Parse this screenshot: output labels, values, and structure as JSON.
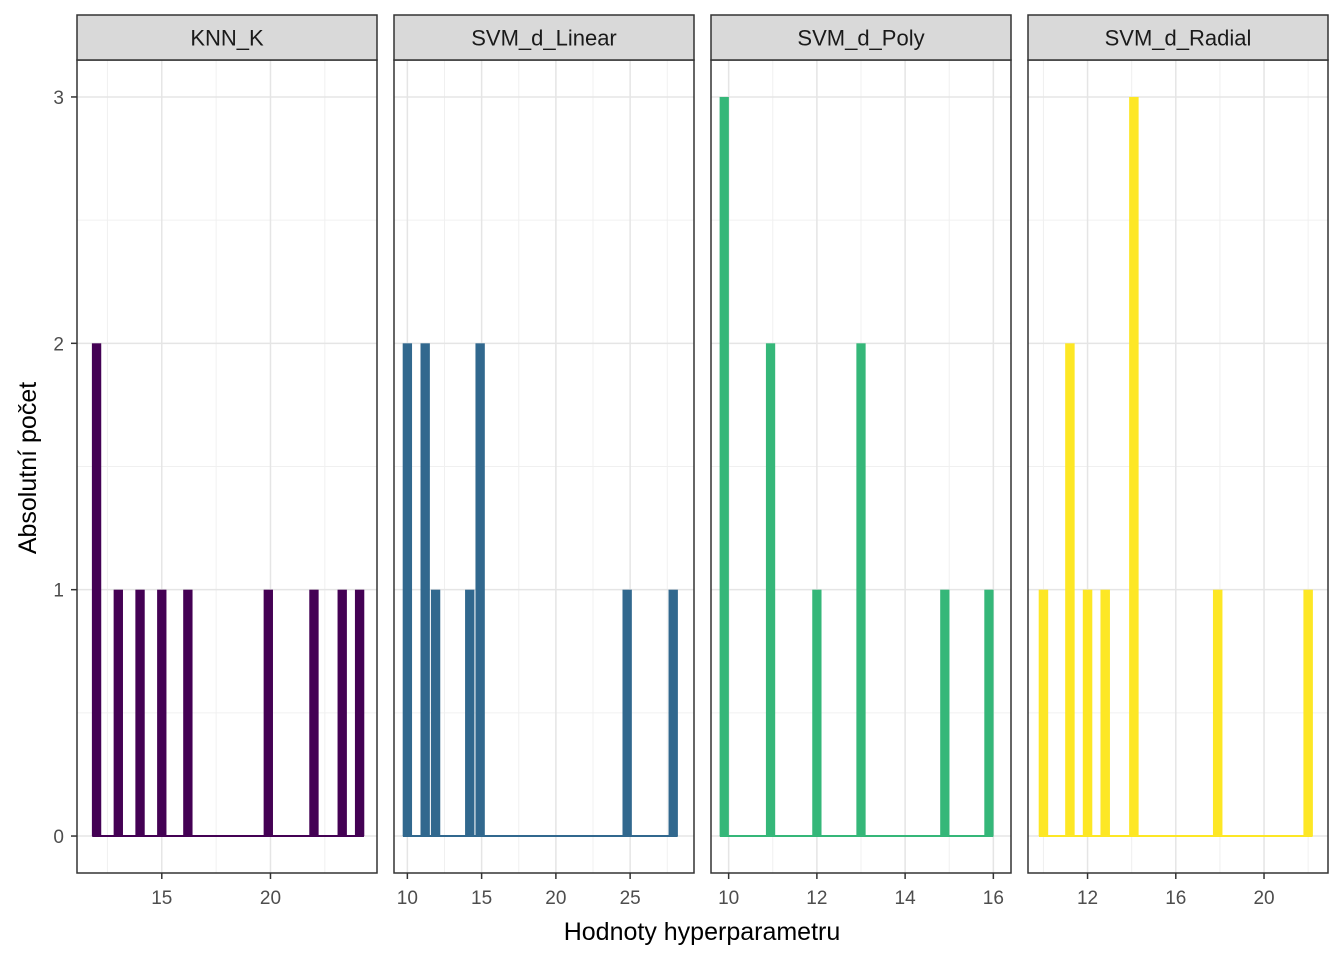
{
  "chart_data": {
    "type": "bar",
    "xlabel": "Hodnoty hyperparametru",
    "ylabel": "Absolutní počet",
    "ylim": [
      -0.15,
      3.15
    ],
    "y_ticks": [
      0,
      1,
      2,
      3
    ],
    "grid": true,
    "legend": "none",
    "facets": [
      {
        "name": "KNN_K",
        "color": "#440154",
        "xlim": [
          11.1,
          24.9
        ],
        "x_ticks": [
          15,
          20
        ],
        "bar_width": 0.43,
        "bars": [
          {
            "x": 12,
            "y": 2
          },
          {
            "x": 13,
            "y": 1
          },
          {
            "x": 14,
            "y": 1
          },
          {
            "x": 15,
            "y": 1
          },
          {
            "x": 16.2,
            "y": 1
          },
          {
            "x": 19.9,
            "y": 1
          },
          {
            "x": 22,
            "y": 1
          },
          {
            "x": 23.3,
            "y": 1
          },
          {
            "x": 24.1,
            "y": 1
          }
        ],
        "baseline": [
          11.8,
          24.3
        ]
      },
      {
        "name": "SVM_d_Linear",
        "color": "#31688E",
        "xlim": [
          9.1,
          29.3
        ],
        "x_ticks": [
          10,
          15,
          20,
          25
        ],
        "bar_width": 0.63,
        "bars": [
          {
            "x": 10,
            "y": 2
          },
          {
            "x": 11.2,
            "y": 2
          },
          {
            "x": 11.9,
            "y": 1
          },
          {
            "x": 14.2,
            "y": 1
          },
          {
            "x": 14.9,
            "y": 2
          },
          {
            "x": 24.8,
            "y": 1
          },
          {
            "x": 27.9,
            "y": 1
          }
        ],
        "baseline": [
          9.7,
          28.2
        ]
      },
      {
        "name": "SVM_d_Poly",
        "color": "#35B779",
        "xlim": [
          9.6,
          16.4
        ],
        "x_ticks": [
          10,
          12,
          14,
          16
        ],
        "bar_width": 0.21,
        "bars": [
          {
            "x": 9.9,
            "y": 3
          },
          {
            "x": 10.95,
            "y": 2
          },
          {
            "x": 12,
            "y": 1
          },
          {
            "x": 13,
            "y": 2
          },
          {
            "x": 14.9,
            "y": 1
          },
          {
            "x": 15.9,
            "y": 1
          }
        ],
        "baseline": [
          9.8,
          16
        ]
      },
      {
        "name": "SVM_d_Radial",
        "color": "#FDE725",
        "xlim": [
          9.3,
          22.9
        ],
        "x_ticks": [
          12,
          16,
          20
        ],
        "bar_width": 0.43,
        "bars": [
          {
            "x": 10,
            "y": 1
          },
          {
            "x": 11.2,
            "y": 2
          },
          {
            "x": 12,
            "y": 1
          },
          {
            "x": 12.8,
            "y": 1
          },
          {
            "x": 14.1,
            "y": 3
          },
          {
            "x": 17.9,
            "y": 1
          },
          {
            "x": 22,
            "y": 1
          }
        ],
        "baseline": [
          9.8,
          22.2
        ]
      }
    ]
  }
}
